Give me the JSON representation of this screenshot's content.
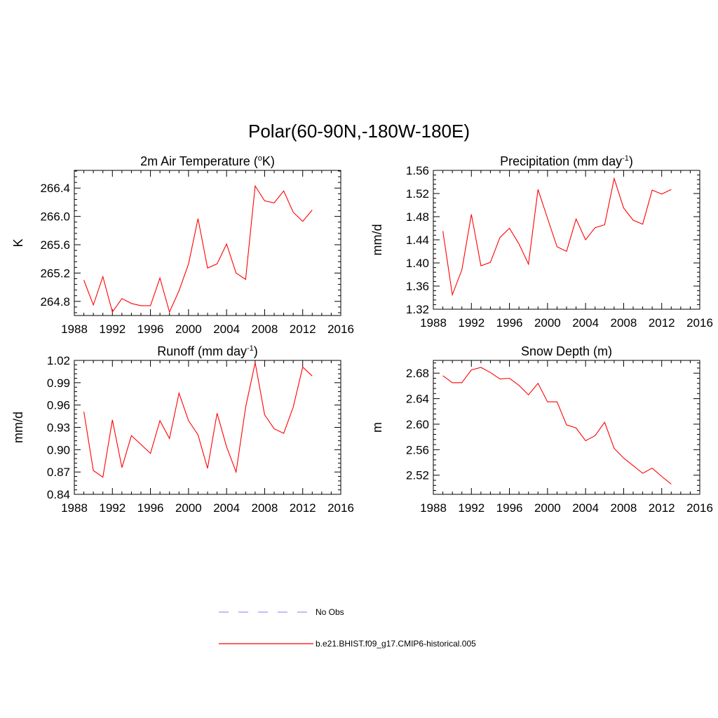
{
  "title": "Polar(60-90N,-180W-180E)",
  "legend": {
    "items": [
      {
        "label": "No Obs",
        "color": "#9999ff",
        "dash": "dashed"
      },
      {
        "label": "b.e21.BHIST.f09_g17.CMIP6-historical.005",
        "color": "#ff0000",
        "dash": "solid"
      }
    ]
  },
  "chart_data": [
    {
      "type": "line",
      "id": "temp",
      "title": "2m Air Temperature (",
      "title_sup": "o",
      "title_after": "K)",
      "ylabel": "K",
      "xlim": [
        1988,
        2016
      ],
      "xticks": [
        1988,
        1992,
        1996,
        2000,
        2004,
        2008,
        2012,
        2016
      ],
      "ylim": [
        264.6,
        266.65
      ],
      "yticks": [
        264.8,
        265.2,
        265.6,
        266.0,
        266.4
      ],
      "ytick_labels": [
        "264.8",
        "265.2",
        "265.6",
        "266.0",
        "266.4"
      ],
      "ytick_minor_step": 0.08,
      "series": [
        {
          "name": "b.e21.BHIST.f09_g17.CMIP6-historical.005",
          "color": "#ff0000",
          "x": [
            1989,
            1990,
            1991,
            1992,
            1993,
            1994,
            1995,
            1996,
            1997,
            1998,
            1999,
            2000,
            2001,
            2002,
            2003,
            2004,
            2005,
            2006,
            2007,
            2008,
            2009,
            2010,
            2011,
            2012,
            2013
          ],
          "values": [
            265.1,
            264.75,
            265.15,
            264.65,
            264.84,
            264.77,
            264.74,
            264.74,
            265.13,
            264.65,
            264.95,
            265.33,
            265.97,
            265.27,
            265.33,
            265.61,
            265.2,
            265.11,
            266.43,
            266.22,
            266.19,
            266.36,
            266.06,
            265.93,
            266.09
          ]
        }
      ]
    },
    {
      "type": "line",
      "id": "precip",
      "title": "Precipitation (mm day",
      "title_sup": "-1",
      "title_after": ")",
      "ylabel": "mm/d",
      "xlim": [
        1988,
        2016
      ],
      "xticks": [
        1988,
        1992,
        1996,
        2000,
        2004,
        2008,
        2012,
        2016
      ],
      "ylim": [
        1.32,
        1.56
      ],
      "yticks": [
        1.32,
        1.36,
        1.4,
        1.44,
        1.48,
        1.52,
        1.56
      ],
      "ytick_labels": [
        "1.32",
        "1.36",
        "1.40",
        "1.44",
        "1.48",
        "1.52",
        "1.56"
      ],
      "ytick_minor_step": 0.008,
      "series": [
        {
          "name": "b.e21.BHIST.f09_g17.CMIP6-historical.005",
          "color": "#ff0000",
          "x": [
            1989,
            1990,
            1991,
            1992,
            1993,
            1994,
            1995,
            1996,
            1997,
            1998,
            1999,
            2000,
            2001,
            2002,
            2003,
            2004,
            2005,
            2006,
            2007,
            2008,
            2009,
            2010,
            2011,
            2012,
            2013
          ],
          "values": [
            1.455,
            1.345,
            1.388,
            1.484,
            1.395,
            1.401,
            1.444,
            1.46,
            1.433,
            1.398,
            1.527,
            1.477,
            1.428,
            1.42,
            1.476,
            1.44,
            1.461,
            1.466,
            1.546,
            1.495,
            1.474,
            1.467,
            1.526,
            1.519,
            1.527
          ]
        }
      ]
    },
    {
      "type": "line",
      "id": "runoff",
      "title": "Runoff (mm day",
      "title_sup": "-1",
      "title_after": ")",
      "ylabel": "mm/d",
      "xlim": [
        1988,
        2016
      ],
      "xticks": [
        1988,
        1992,
        1996,
        2000,
        2004,
        2008,
        2012,
        2016
      ],
      "ylim": [
        0.84,
        1.02
      ],
      "yticks": [
        0.84,
        0.87,
        0.9,
        0.93,
        0.96,
        0.99,
        1.02
      ],
      "ytick_labels": [
        "0.84",
        "0.87",
        "0.90",
        "0.93",
        "0.96",
        "0.99",
        "1.02"
      ],
      "ytick_minor_step": 0.006,
      "series": [
        {
          "name": "b.e21.BHIST.f09_g17.CMIP6-historical.005",
          "color": "#ff0000",
          "x": [
            1989,
            1990,
            1991,
            1992,
            1993,
            1994,
            1995,
            1996,
            1997,
            1998,
            1999,
            2000,
            2001,
            2002,
            2003,
            2004,
            2005,
            2006,
            2007,
            2008,
            2009,
            2010,
            2011,
            2012,
            2013
          ],
          "values": [
            0.951,
            0.872,
            0.863,
            0.94,
            0.876,
            0.919,
            0.907,
            0.895,
            0.939,
            0.915,
            0.976,
            0.939,
            0.92,
            0.875,
            0.949,
            0.904,
            0.87,
            0.957,
            1.017,
            0.947,
            0.928,
            0.922,
            0.957,
            1.011,
            0.999
          ]
        }
      ]
    },
    {
      "type": "line",
      "id": "snow",
      "title": "Snow Depth (m)",
      "title_sup": "",
      "title_after": "",
      "ylabel": "m",
      "xlim": [
        1988,
        2016
      ],
      "xticks": [
        1988,
        1992,
        1996,
        2000,
        2004,
        2008,
        2012,
        2016
      ],
      "ylim": [
        2.49,
        2.7
      ],
      "yticks": [
        2.52,
        2.56,
        2.6,
        2.64,
        2.68
      ],
      "ytick_labels": [
        "2.52",
        "2.56",
        "2.60",
        "2.64",
        "2.68"
      ],
      "ytick_minor_step": 0.008,
      "series": [
        {
          "name": "b.e21.BHIST.f09_g17.CMIP6-historical.005",
          "color": "#ff0000",
          "x": [
            1989,
            1990,
            1991,
            1992,
            1993,
            1994,
            1995,
            1996,
            1997,
            1998,
            1999,
            2000,
            2001,
            2002,
            2003,
            2004,
            2005,
            2006,
            2007,
            2008,
            2009,
            2010,
            2011,
            2012,
            2013
          ],
          "values": [
            2.676,
            2.665,
            2.665,
            2.685,
            2.689,
            2.681,
            2.671,
            2.672,
            2.661,
            2.646,
            2.664,
            2.635,
            2.635,
            2.599,
            2.594,
            2.574,
            2.582,
            2.603,
            2.562,
            2.547,
            2.535,
            2.523,
            2.531,
            2.518,
            2.506
          ]
        }
      ]
    }
  ]
}
